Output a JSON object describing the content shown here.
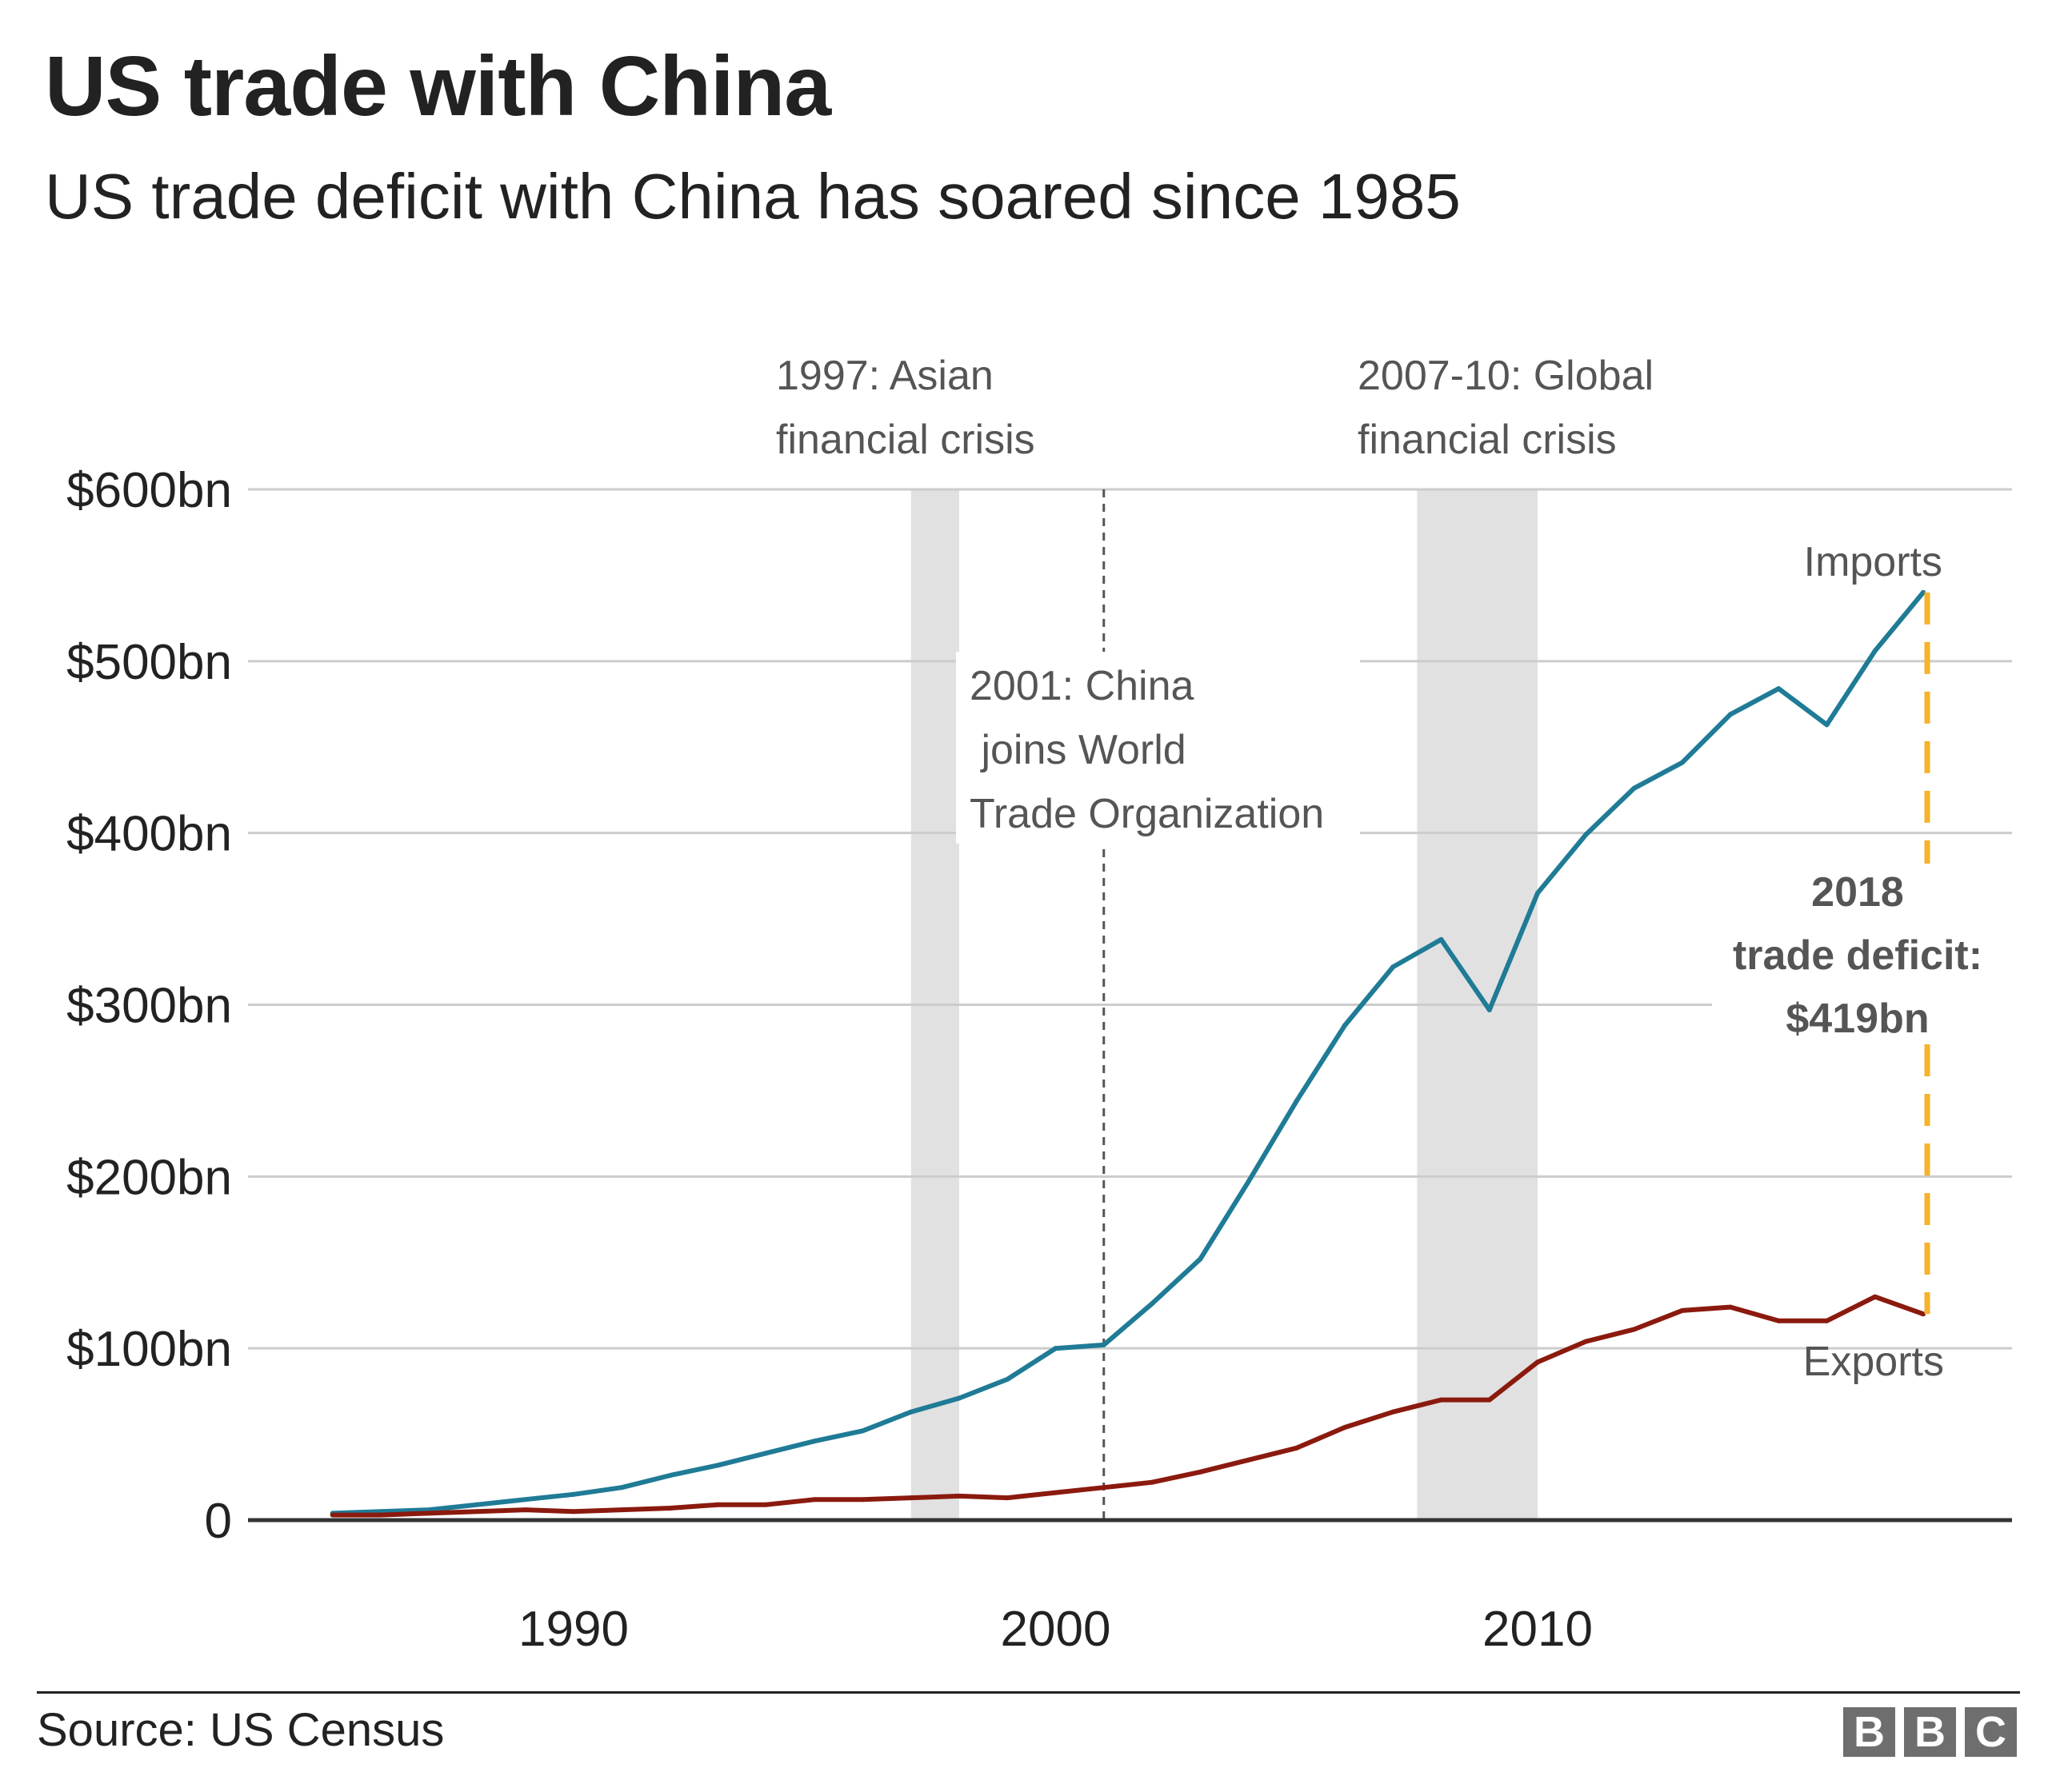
{
  "header": {
    "title": "US trade with China",
    "subtitle": "US trade deficit with China has soared since 1985"
  },
  "footer": {
    "source": "Source: US Census",
    "logo_letters": [
      "B",
      "B",
      "C"
    ]
  },
  "colors": {
    "imports": "#1f7b96",
    "exports": "#8b1a0e",
    "deficit": "#f5b22c",
    "shading": "#e1e1e1",
    "grid": "#cccccc",
    "text": "#222222",
    "annotation": "#555555"
  },
  "chart_data": {
    "type": "line",
    "title": "US trade with China",
    "subtitle": "US trade deficit with China has soared since 1985",
    "xlabel": "",
    "ylabel": "",
    "xlim": [
      1985,
      2018
    ],
    "ylim": [
      0,
      600
    ],
    "grid": true,
    "x_ticks": [
      1990,
      2000,
      2010
    ],
    "x_tick_labels": [
      "1990",
      "2000",
      "2010"
    ],
    "y_ticks": [
      0,
      100,
      200,
      300,
      400,
      500,
      600
    ],
    "y_tick_labels": [
      "0",
      "$100bn",
      "$200bn",
      "$300bn",
      "$400bn",
      "$500bn",
      "$600bn"
    ],
    "x": [
      1985,
      1986,
      1987,
      1988,
      1989,
      1990,
      1991,
      1992,
      1993,
      1994,
      1995,
      1996,
      1997,
      1998,
      1999,
      2000,
      2001,
      2002,
      2003,
      2004,
      2005,
      2006,
      2007,
      2008,
      2009,
      2010,
      2011,
      2012,
      2013,
      2014,
      2015,
      2016,
      2017,
      2018
    ],
    "series": [
      {
        "name": "Imports",
        "color": "#1f7b96",
        "values": [
          4,
          5,
          6,
          9,
          12,
          15,
          19,
          26,
          32,
          39,
          46,
          52,
          63,
          71,
          82,
          100,
          102,
          126,
          152,
          197,
          244,
          288,
          322,
          338,
          297,
          365,
          399,
          426,
          441,
          469,
          484,
          463,
          506,
          540
        ]
      },
      {
        "name": "Exports",
        "color": "#8b1a0e",
        "values": [
          3,
          3,
          4,
          5,
          6,
          5,
          6,
          7,
          9,
          9,
          12,
          12,
          13,
          14,
          13,
          16,
          19,
          22,
          28,
          35,
          42,
          54,
          63,
          70,
          70,
          92,
          104,
          111,
          122,
          124,
          116,
          116,
          130,
          120
        ]
      }
    ],
    "shaded_periods": [
      {
        "label": [
          "1997: Asian",
          "financial crisis"
        ],
        "start": 1997,
        "end": 1998
      },
      {
        "label": [
          "2007-10: Global",
          "financial crisis"
        ],
        "start": 2007.5,
        "end": 2010
      }
    ],
    "events": [
      {
        "label": [
          "2001: China",
          " joins World",
          "Trade Organization"
        ],
        "x": 2001
      }
    ],
    "deficit_annotation": {
      "label": [
        "2018",
        "trade deficit:",
        "$419bn"
      ],
      "year": 2018,
      "top": 540,
      "bottom": 120
    },
    "legend": "inline labels at line ends"
  }
}
